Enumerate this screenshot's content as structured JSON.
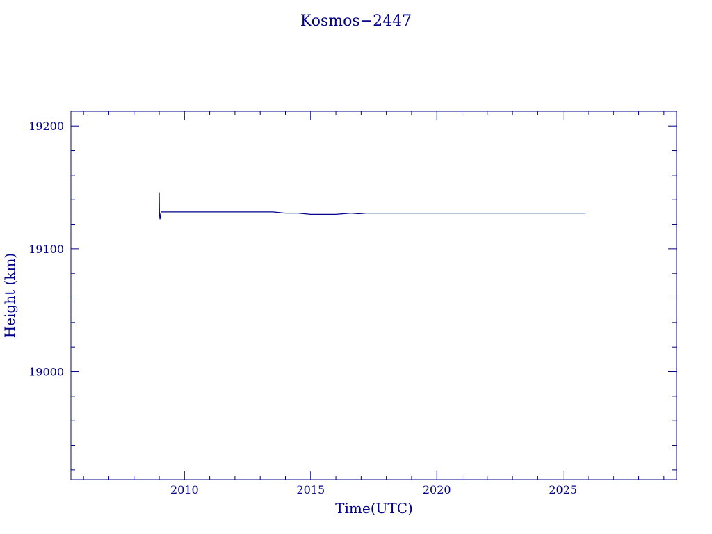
{
  "chart_data": {
    "type": "line",
    "title": "Kosmos−2447",
    "xlabel": "Time(UTC)",
    "ylabel": "Height (km)",
    "xlim": [
      2005.5,
      2029.5
    ],
    "ylim": [
      18912,
      19212
    ],
    "x_ticks": [
      2010,
      2015,
      2020,
      2025
    ],
    "x_tick_labels": [
      "2010",
      "2015",
      "2020",
      "2025"
    ],
    "y_ticks": [
      19000,
      19100,
      19200
    ],
    "y_tick_labels": [
      "19000",
      "19100",
      "19200"
    ],
    "grid": false,
    "color": "#00008b",
    "series": [
      {
        "x": [
          2009.0,
          2009.01,
          2009.03,
          2009.05,
          2009.08,
          2009.12,
          2009.2,
          2010.0,
          2011.0,
          2012.0,
          2013.0,
          2013.5,
          2014.0,
          2014.5,
          2015.0,
          2015.5,
          2016.0,
          2016.3,
          2016.6,
          2016.9,
          2017.2,
          2017.6,
          2018.0,
          2019.0,
          2020.0,
          2021.0,
          2022.0,
          2023.0,
          2024.0,
          2025.0,
          2025.9
        ],
        "y": [
          19146,
          19128,
          19124,
          19128,
          19130,
          19130,
          19130,
          19130,
          19130,
          19130,
          19130,
          19130,
          19129,
          19129,
          19128,
          19128,
          19128,
          19128.5,
          19129,
          19128.5,
          19129,
          19129,
          19129,
          19129,
          19129,
          19129,
          19129,
          19129,
          19129,
          19129,
          19129
        ]
      }
    ]
  }
}
